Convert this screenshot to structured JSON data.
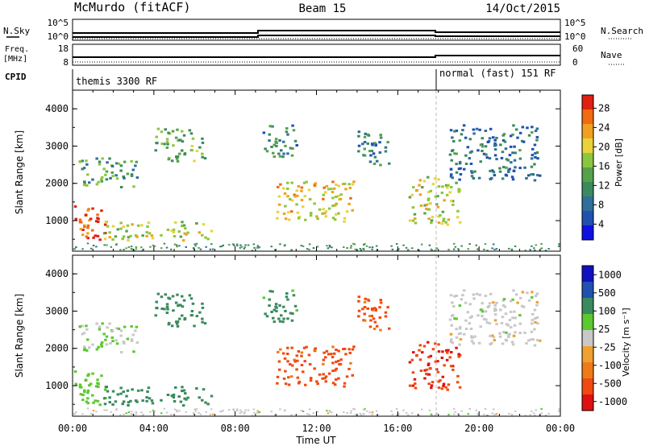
{
  "header": {
    "station": "McMurdo (fitACF)",
    "beam": "Beam 15",
    "date": "14/Oct/2015"
  },
  "top_panels": {
    "nsky_label": "N.Sky",
    "nsearch_label": "N.Search",
    "freq_label_1": "Freq.",
    "freq_label_2": "[MHz]",
    "nave_label": "Nave",
    "cpid_label": "CPID",
    "sky_ticks": [
      "10^5",
      "10^0"
    ],
    "freq_ticks": [
      "18",
      "8"
    ],
    "nave_ticks": [
      "60",
      "0"
    ],
    "cpid_segments": [
      {
        "label": "themis 3300 RF",
        "start_hour": 0
      },
      {
        "label": "normal (fast) 151 RF",
        "start_hour": 18
      }
    ]
  },
  "chart_data": [
    {
      "type": "heatmap",
      "name": "power",
      "ylabel": "Slant Range [km]",
      "xlabel": "Time UT",
      "xlim": [
        0,
        24
      ],
      "ylim": [
        180,
        4500
      ],
      "yticks": [
        "1000",
        "2000",
        "3000",
        "4000"
      ],
      "xticks": [
        "00:00",
        "04:00",
        "08:00",
        "12:00",
        "16:00",
        "20:00",
        "00:00"
      ],
      "colorbar": {
        "label": "Power [dB]",
        "ticks": [
          "28",
          "24",
          "20",
          "16",
          "12",
          "8",
          "4"
        ],
        "range": [
          0,
          30
        ],
        "colors": [
          "#1010e0",
          "#2050b0",
          "#2f6f9a",
          "#3a8a5e",
          "#55a24a",
          "#8cc63f",
          "#e8d33a",
          "#f0a020",
          "#f06a10",
          "#e02010"
        ]
      },
      "echo_regions": [
        {
          "t": [
            0.0,
            1.6
          ],
          "r": [
            500,
            1500
          ],
          "v": 27
        },
        {
          "t": [
            0.2,
            3.2
          ],
          "r": [
            1900,
            2700
          ],
          "v": 12
        },
        {
          "t": [
            1.5,
            6.8
          ],
          "r": [
            500,
            1000
          ],
          "v": 18
        },
        {
          "t": [
            4.0,
            6.5
          ],
          "r": [
            2600,
            3500
          ],
          "v": 14
        },
        {
          "t": [
            9.3,
            11.0
          ],
          "r": [
            2700,
            3600
          ],
          "v": 10
        },
        {
          "t": [
            10.0,
            13.8
          ],
          "r": [
            1000,
            2100
          ],
          "v": 20
        },
        {
          "t": [
            14.0,
            15.6
          ],
          "r": [
            2500,
            3500
          ],
          "v": 9
        },
        {
          "t": [
            16.5,
            19.0
          ],
          "r": [
            900,
            2200
          ],
          "v": 18
        },
        {
          "t": [
            18.5,
            23.0
          ],
          "r": [
            2100,
            3600
          ],
          "v": 8
        }
      ]
    },
    {
      "type": "heatmap",
      "name": "velocity",
      "ylabel": "Slant Range [km]",
      "xlabel": "Time UT",
      "xlim": [
        0,
        24
      ],
      "ylim": [
        180,
        4500
      ],
      "yticks": [
        "1000",
        "2000",
        "3000",
        "4000"
      ],
      "xticks": [
        "00:00",
        "04:00",
        "08:00",
        "12:00",
        "16:00",
        "20:00",
        "00:00"
      ],
      "colorbar": {
        "label": "Velocity [m s⁻¹]",
        "ticks": [
          "1000",
          "500",
          "100",
          "25",
          "-25",
          "-100",
          "-500",
          "-1000"
        ],
        "range": [
          -1000,
          1000
        ],
        "colors": [
          "#e01010",
          "#f04a10",
          "#f07a18",
          "#f0a030",
          "#c8c8c8",
          "#5cc830",
          "#3a8a5e",
          "#2050b0",
          "#1010c0"
        ]
      },
      "echo_regions": [
        {
          "t": [
            0.0,
            1.6
          ],
          "r": [
            500,
            1500
          ],
          "v": 60
        },
        {
          "t": [
            0.2,
            3.2
          ],
          "r": [
            1900,
            2700
          ],
          "v": 25
        },
        {
          "t": [
            1.5,
            6.8
          ],
          "r": [
            500,
            1000
          ],
          "v": 250
        },
        {
          "t": [
            4.0,
            6.5
          ],
          "r": [
            2600,
            3500
          ],
          "v": 300
        },
        {
          "t": [
            9.3,
            11.0
          ],
          "r": [
            2700,
            3600
          ],
          "v": 150
        },
        {
          "t": [
            10.0,
            13.8
          ],
          "r": [
            1000,
            2100
          ],
          "v": -150
        },
        {
          "t": [
            14.0,
            15.6
          ],
          "r": [
            2500,
            3500
          ],
          "v": -150
        },
        {
          "t": [
            16.5,
            19.0
          ],
          "r": [
            900,
            2200
          ],
          "v": -450
        },
        {
          "t": [
            18.5,
            23.0
          ],
          "r": [
            2100,
            3600
          ],
          "v": 0
        }
      ]
    }
  ]
}
